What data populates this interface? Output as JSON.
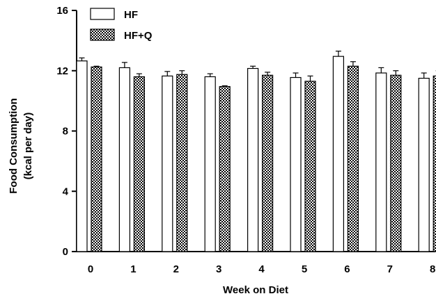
{
  "chart_data": {
    "type": "bar",
    "title": "",
    "xlabel": "Week on Diet",
    "ylabel_line1": "Food Consumption",
    "ylabel_line2": "(kcal per day)",
    "ylim": [
      0,
      16
    ],
    "yticks": [
      0,
      4,
      8,
      12,
      16
    ],
    "categories": [
      "0",
      "1",
      "2",
      "3",
      "4",
      "5",
      "6",
      "7",
      "8"
    ],
    "legend_position": "top-left",
    "grid": false,
    "series": [
      {
        "name": "HF",
        "fill": "white",
        "values": [
          12.65,
          12.2,
          11.65,
          11.6,
          12.15,
          11.55,
          12.95,
          11.85,
          11.5
        ],
        "errors": [
          0.2,
          0.35,
          0.3,
          0.2,
          0.15,
          0.3,
          0.35,
          0.35,
          0.35
        ]
      },
      {
        "name": "HF+Q",
        "fill": "checker",
        "values": [
          12.25,
          11.6,
          11.75,
          10.95,
          11.7,
          11.3,
          12.3,
          11.7,
          11.65
        ],
        "errors": [
          0.05,
          0.2,
          0.25,
          0.05,
          0.2,
          0.35,
          0.3,
          0.3,
          0.35
        ]
      }
    ]
  }
}
